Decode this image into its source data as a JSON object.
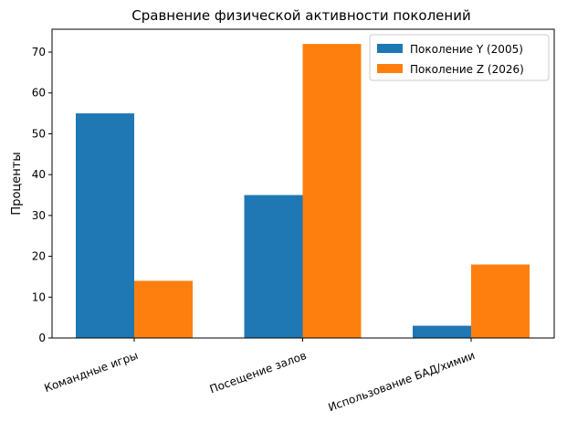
{
  "chart_data": {
    "type": "bar",
    "title": "Сравнение физической активности поколений",
    "xlabel": "",
    "ylabel": "Проценты",
    "categories": [
      "Командные игры",
      "Посещение залов",
      "Использование БАД/химии"
    ],
    "series": [
      {
        "name": "Поколение Y (2005)",
        "color": "#1f77b4",
        "values": [
          55,
          35,
          3
        ]
      },
      {
        "name": "Поколение Z (2026)",
        "color": "#ff7f0e",
        "values": [
          14,
          72,
          18
        ]
      }
    ],
    "ylim": [
      0,
      75.6
    ],
    "yticks": [
      "0",
      "10",
      "20",
      "30",
      "40",
      "50",
      "60",
      "70"
    ],
    "legend_position": "top-right",
    "grid": false,
    "xtick_rotation": "rotated"
  }
}
